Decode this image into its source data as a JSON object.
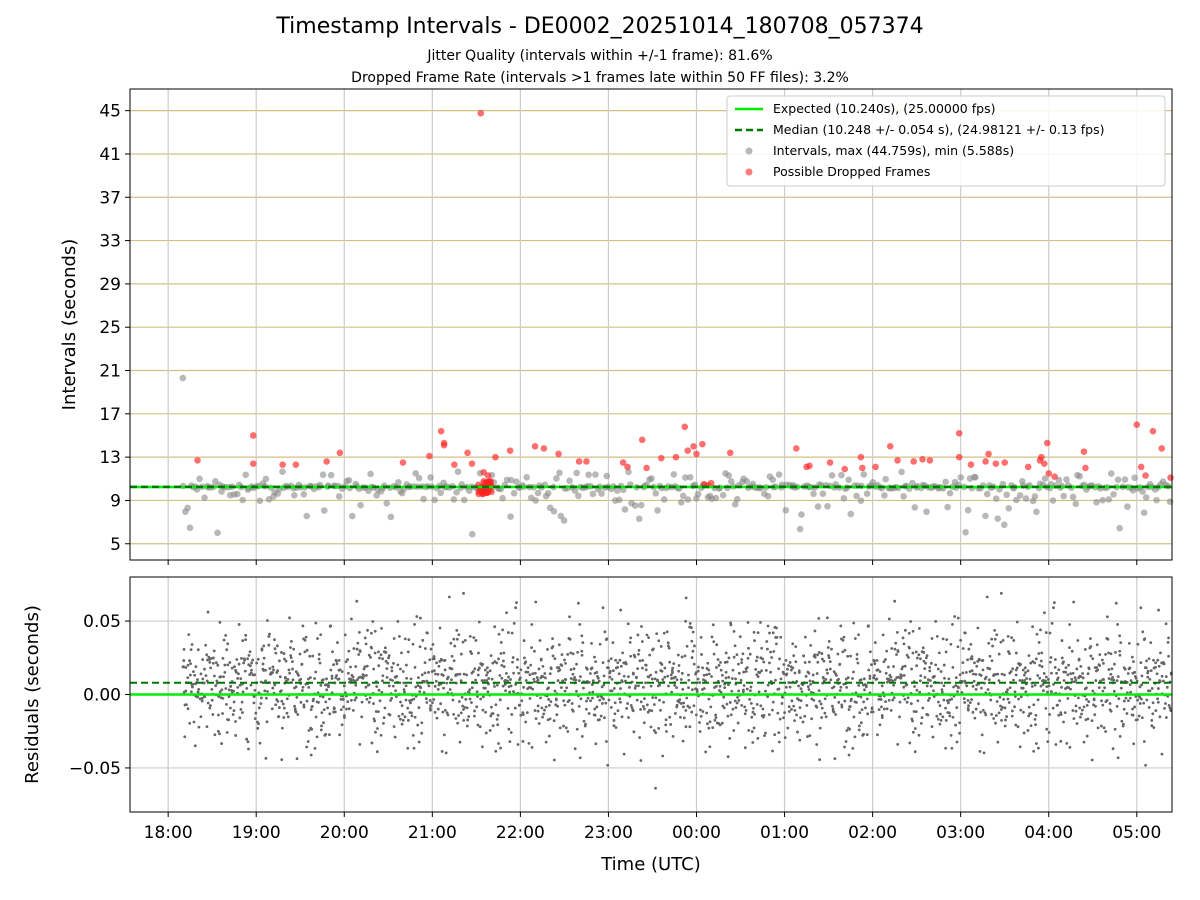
{
  "header": {
    "title": "Timestamp Intervals - DE0002_20251014_180708_057374",
    "subtitle_jitter": "Jitter Quality (intervals within +/-1 frame): 81.6%",
    "subtitle_dropped": "Dropped Frame Rate (intervals >1 frames late within 50 FF files): 3.2%"
  },
  "colors": {
    "expected": "#00ee00",
    "median": "#007700",
    "intervals": "#888888",
    "dropped": "#ff2222",
    "residuals": "#666666",
    "hgrid_top": "#d4c083",
    "grid": "#cccccc"
  },
  "chart_data": [
    {
      "type": "scatter",
      "panel": "intervals",
      "ylabel": "Intervals (seconds)",
      "ylim": [
        3.5,
        47
      ],
      "yticks": [
        5,
        9,
        13,
        17,
        21,
        25,
        29,
        33,
        37,
        41,
        45
      ],
      "xrange_hours": [
        "17:34",
        "05:24"
      ],
      "expected_value": 10.24,
      "median_value": 10.248,
      "legend": {
        "placement": "top-right",
        "expected": "Expected (10.240s), (25.00000 fps)",
        "median": "Median (10.248 +/- 0.054 s), (24.98121 +/- 0.13 fps)",
        "intervals": "Intervals, max (44.759s), min (5.588s)",
        "dropped": "Possible Dropped Frames"
      },
      "notable_points": [
        {
          "time": "18:10",
          "value": 20.3,
          "series": "intervals"
        },
        {
          "time": "21:33",
          "value": 44.76,
          "series": "dropped"
        }
      ],
      "dropped_points": [
        [
          "18:20",
          12.7
        ],
        [
          "18:58",
          15.0
        ],
        [
          "18:58",
          12.4
        ],
        [
          "19:18",
          12.3
        ],
        [
          "19:27",
          12.3
        ],
        [
          "19:48",
          12.6
        ],
        [
          "19:57",
          13.4
        ],
        [
          "20:40",
          12.5
        ],
        [
          "20:58",
          13.1
        ],
        [
          "21:06",
          15.4
        ],
        [
          "21:08",
          14.1
        ],
        [
          "21:08",
          14.3
        ],
        [
          "21:15",
          12.3
        ],
        [
          "21:24",
          13.4
        ],
        [
          "21:27",
          12.4
        ],
        [
          "21:35",
          11.6
        ],
        [
          "21:38",
          11.3
        ],
        [
          "21:43",
          13.0
        ],
        [
          "21:53",
          13.6
        ],
        [
          "22:10",
          14.0
        ],
        [
          "22:16",
          13.8
        ],
        [
          "22:26",
          13.3
        ],
        [
          "22:40",
          12.6
        ],
        [
          "22:45",
          12.6
        ],
        [
          "23:10",
          12.5
        ],
        [
          "23:13",
          12.1
        ],
        [
          "23:23",
          14.6
        ],
        [
          "23:26",
          12.0
        ],
        [
          "23:36",
          12.9
        ],
        [
          "23:46",
          13.0
        ],
        [
          "23:52",
          15.8
        ],
        [
          "23:54",
          13.6
        ],
        [
          "23:58",
          14.0
        ],
        [
          "24:00",
          13.3
        ],
        [
          "24:04",
          14.2
        ],
        [
          "24:05",
          10.5
        ],
        [
          "24:08",
          10.4
        ],
        [
          "24:10",
          10.6
        ],
        [
          "24:23",
          13.4
        ],
        [
          "25:08",
          13.8
        ],
        [
          "25:15",
          12.1
        ],
        [
          "25:17",
          12.2
        ],
        [
          "25:31",
          12.5
        ],
        [
          "25:41",
          11.9
        ],
        [
          "25:52",
          13.0
        ],
        [
          "25:53",
          12.0
        ],
        [
          "26:02",
          12.1
        ],
        [
          "26:12",
          14.0
        ],
        [
          "26:17",
          12.7
        ],
        [
          "26:28",
          12.6
        ],
        [
          "26:34",
          12.8
        ],
        [
          "26:39",
          12.7
        ],
        [
          "26:59",
          15.2
        ],
        [
          "26:59",
          13.0
        ],
        [
          "27:07",
          12.3
        ],
        [
          "27:17",
          12.6
        ],
        [
          "27:19",
          13.3
        ],
        [
          "27:24",
          12.4
        ],
        [
          "27:30",
          12.5
        ],
        [
          "27:46",
          12.1
        ],
        [
          "27:54",
          12.7
        ],
        [
          "27:55",
          13.0
        ],
        [
          "27:57",
          12.4
        ],
        [
          "27:59",
          14.3
        ],
        [
          "28:00",
          11.5
        ],
        [
          "28:04",
          11.2
        ],
        [
          "28:24",
          13.5
        ],
        [
          "28:25",
          12.0
        ],
        [
          "29:00",
          16.0
        ],
        [
          "29:03",
          12.1
        ],
        [
          "29:06",
          11.3
        ],
        [
          "29:11",
          15.4
        ],
        [
          "29:17",
          13.8
        ],
        [
          "29:23",
          11.1
        ]
      ]
    },
    {
      "type": "scatter",
      "panel": "residuals",
      "ylabel": "Residuals (seconds)",
      "ylim": [
        -0.08,
        0.08
      ],
      "yticks": [
        -0.05,
        0.0,
        0.05
      ],
      "ytick_labels": [
        "−0.05",
        "0.00",
        "0.05"
      ],
      "expected_value": 0.0,
      "median_value": 0.008,
      "xlabel": "Time (UTC)",
      "xticks": [
        "18:00",
        "19:00",
        "20:00",
        "21:00",
        "22:00",
        "23:00",
        "00:00",
        "01:00",
        "02:00",
        "03:00",
        "04:00",
        "05:00"
      ]
    }
  ]
}
